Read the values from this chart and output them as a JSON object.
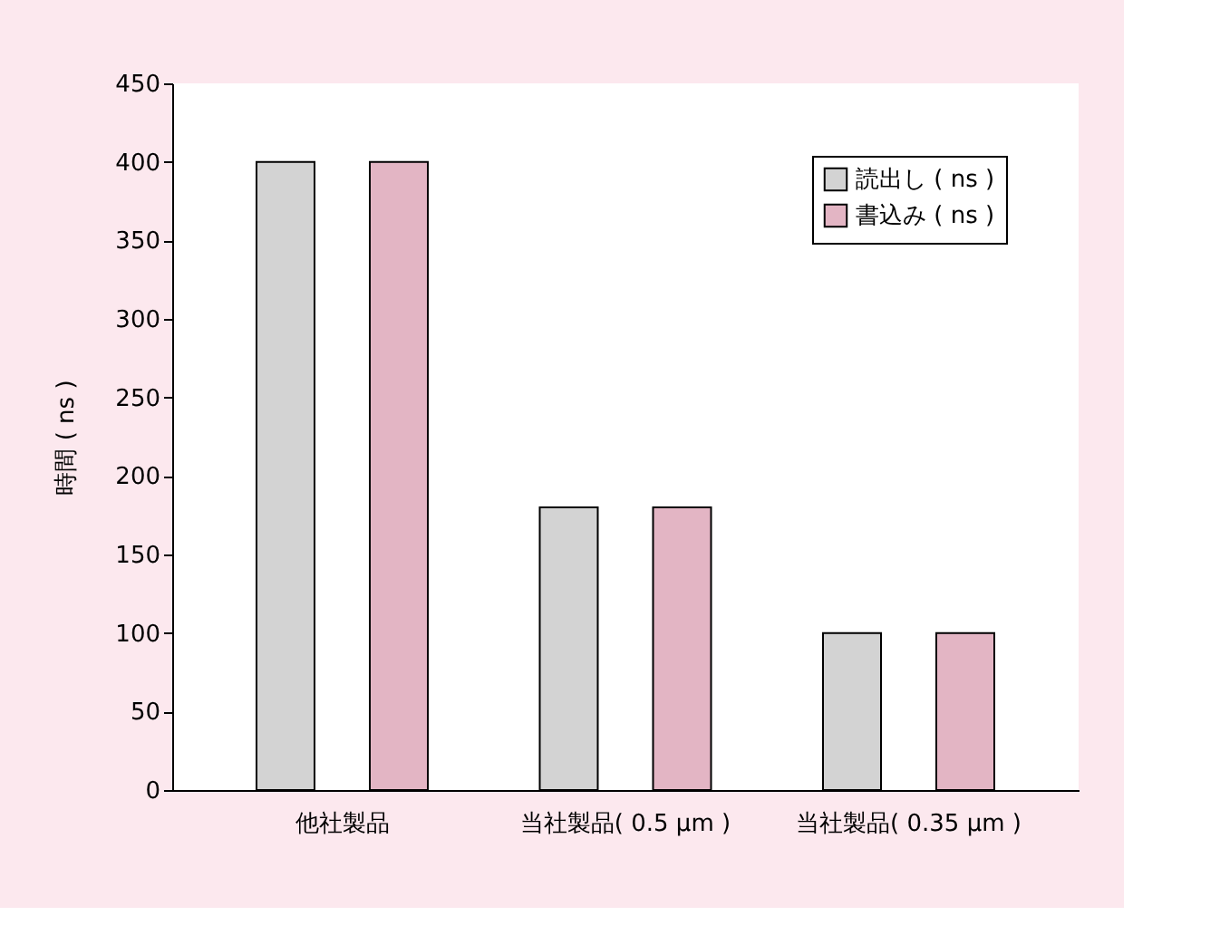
{
  "chart_data": {
    "type": "bar",
    "ylabel": "時間 ( ns )",
    "categories": [
      "他社製品",
      "当社製品( 0.5 μm )",
      "当社製品( 0.35 μm )"
    ],
    "series": [
      {
        "name": "読出し ( ns )",
        "color": "#d3d3d3",
        "values": [
          400,
          180,
          100
        ]
      },
      {
        "name": "書込み ( ns )",
        "color": "#e3b5c4",
        "values": [
          400,
          180,
          100
        ]
      }
    ],
    "ylim": [
      0,
      450
    ],
    "yticks": [
      0,
      50,
      100,
      150,
      200,
      250,
      300,
      350,
      400,
      450
    ],
    "grid": false,
    "legend": "top right"
  }
}
